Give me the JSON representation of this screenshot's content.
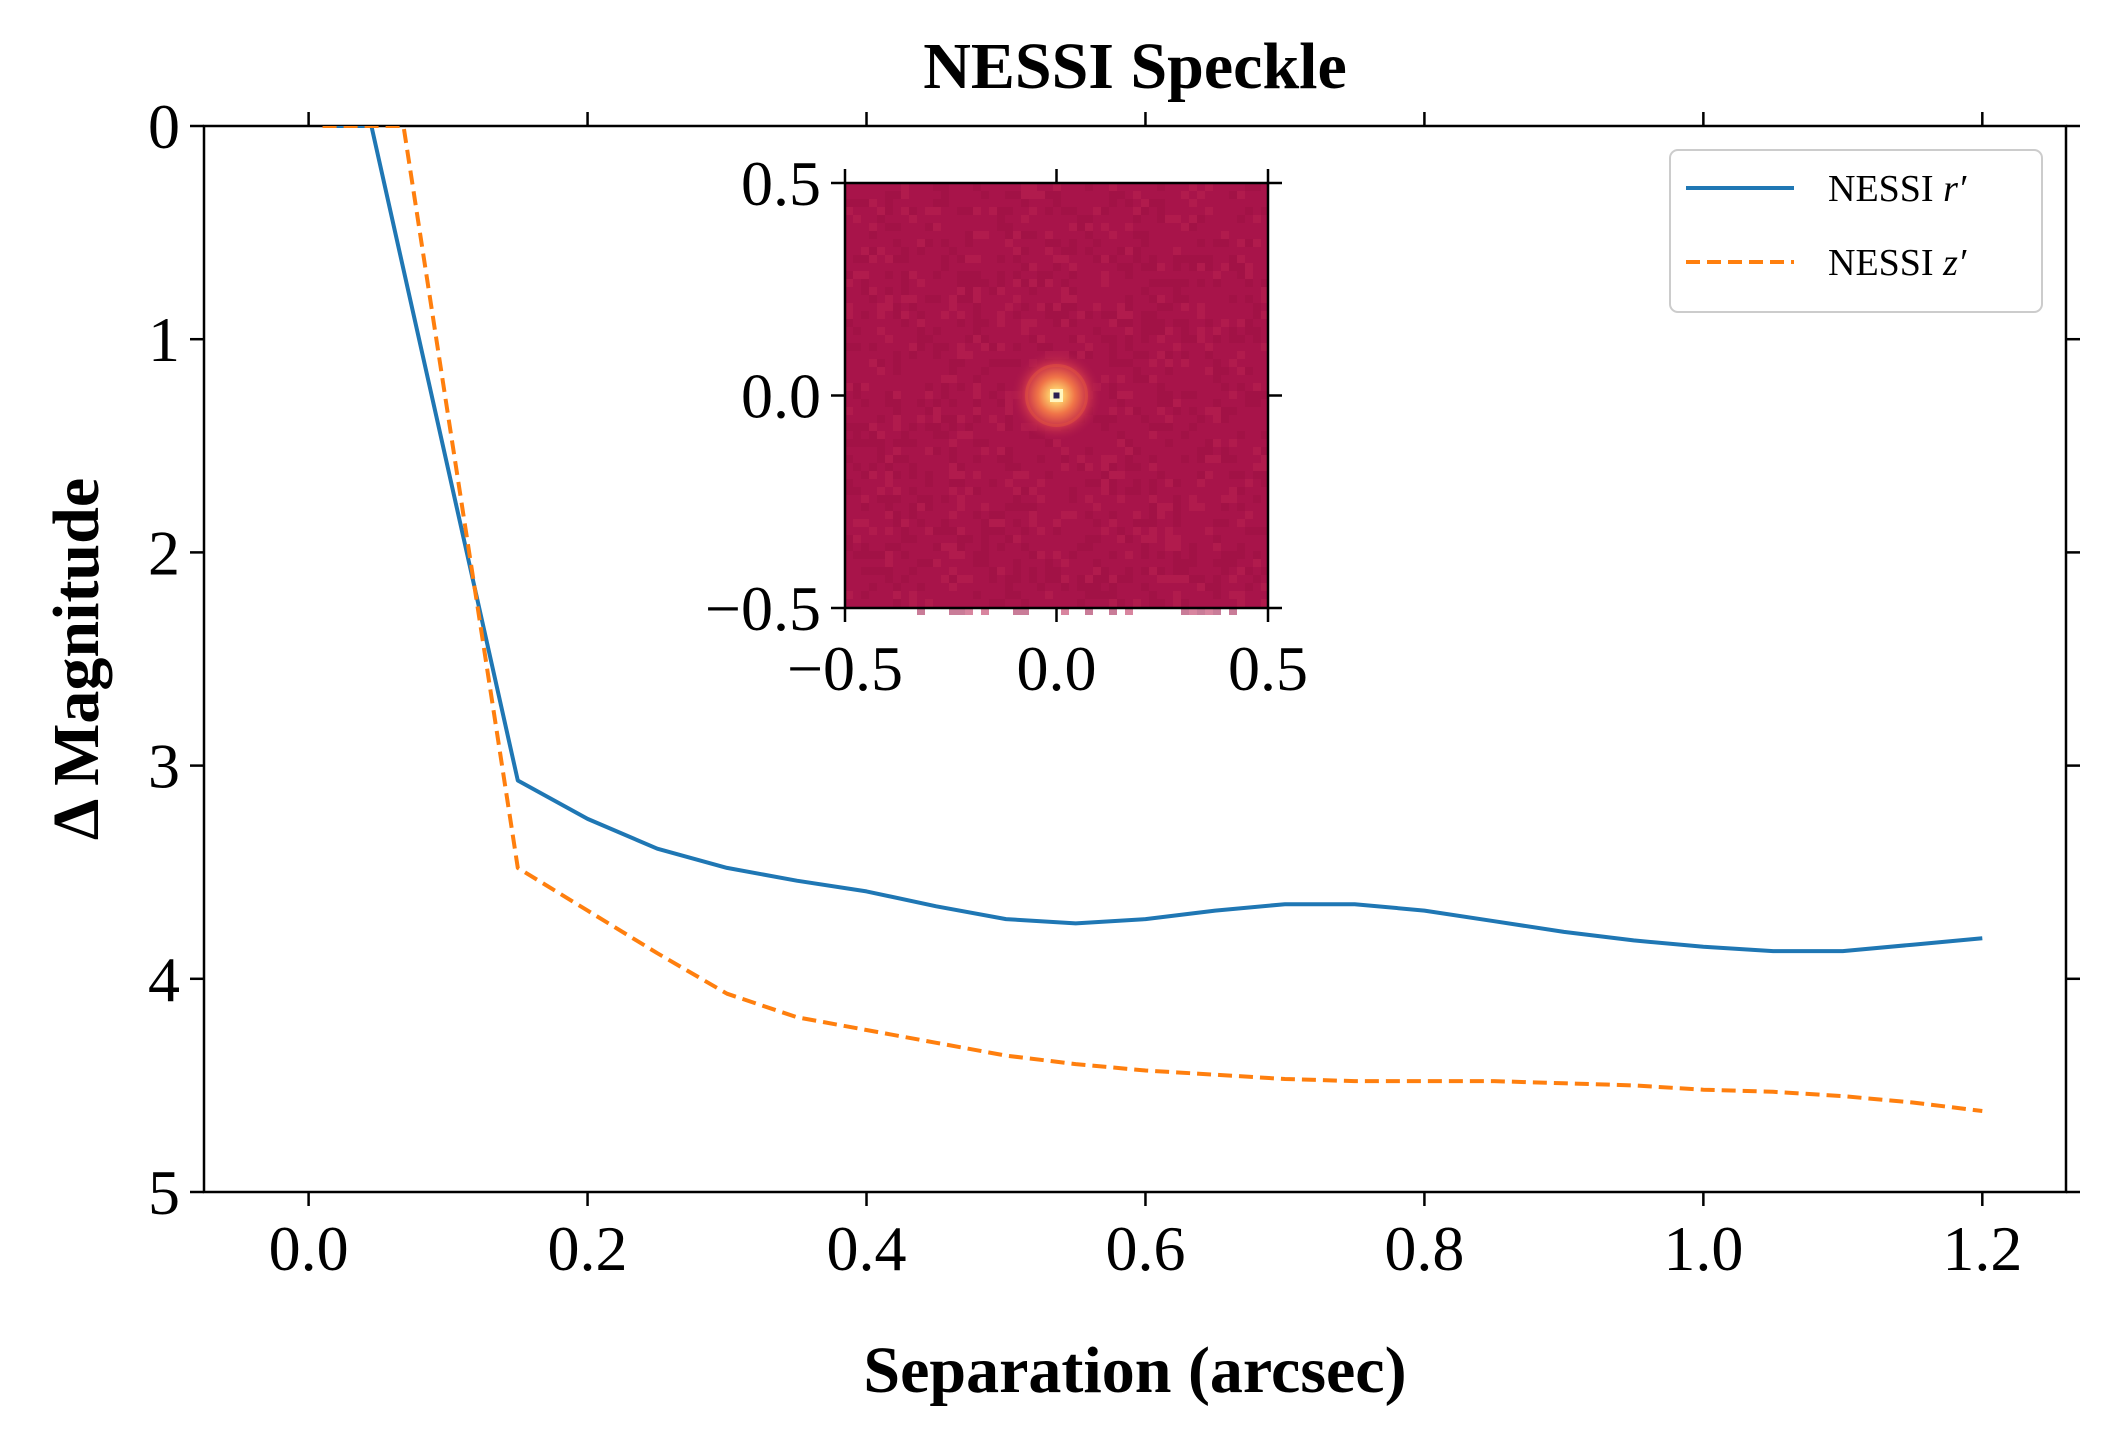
{
  "chart_data": {
    "type": "line",
    "title": "NESSI Speckle",
    "xlabel": "Separation (arcsec)",
    "ylabel": "Δ Magnitude",
    "xlim": [
      -0.075,
      1.26
    ],
    "ylim": [
      5,
      0
    ],
    "y_inverted": true,
    "xticks": [
      0.0,
      0.2,
      0.4,
      0.6,
      0.8,
      1.0,
      1.2
    ],
    "xtick_labels": [
      "0.0",
      "0.2",
      "0.4",
      "0.6",
      "0.8",
      "1.0",
      "1.2"
    ],
    "yticks": [
      0,
      1,
      2,
      3,
      4,
      5
    ],
    "ytick_labels": [
      "0",
      "1",
      "2",
      "3",
      "4",
      "5"
    ],
    "grid": false,
    "legend_position": "top-right",
    "series": [
      {
        "name": "NESSI r′",
        "name_base": "NESSI ",
        "name_var": "r′",
        "color": "#1f77b4",
        "style": "solid",
        "x": [
          0.01,
          0.045,
          0.15,
          0.2,
          0.25,
          0.3,
          0.35,
          0.4,
          0.45,
          0.5,
          0.55,
          0.6,
          0.65,
          0.7,
          0.75,
          0.8,
          0.85,
          0.9,
          0.95,
          1.0,
          1.05,
          1.1,
          1.15,
          1.2
        ],
        "y": [
          0.0,
          0.0,
          3.07,
          3.25,
          3.39,
          3.48,
          3.54,
          3.59,
          3.66,
          3.72,
          3.74,
          3.72,
          3.68,
          3.65,
          3.65,
          3.68,
          3.73,
          3.78,
          3.82,
          3.85,
          3.87,
          3.87,
          3.84,
          3.81
        ]
      },
      {
        "name": "NESSI z′",
        "name_base": "NESSI ",
        "name_var": "z′",
        "color": "#ff7f0e",
        "style": "dashed",
        "x": [
          0.01,
          0.068,
          0.15,
          0.2,
          0.25,
          0.3,
          0.35,
          0.4,
          0.45,
          0.5,
          0.55,
          0.6,
          0.65,
          0.7,
          0.75,
          0.8,
          0.85,
          0.9,
          0.95,
          1.0,
          1.05,
          1.1,
          1.15,
          1.2
        ],
        "y": [
          0.0,
          0.0,
          3.48,
          3.68,
          3.88,
          4.07,
          4.18,
          4.24,
          4.3,
          4.36,
          4.4,
          4.43,
          4.45,
          4.47,
          4.48,
          4.48,
          4.48,
          4.49,
          4.5,
          4.52,
          4.53,
          4.55,
          4.58,
          4.62
        ]
      }
    ],
    "inset": {
      "description_type": "image",
      "xlim": [
        -0.5,
        0.5
      ],
      "ylim": [
        -0.5,
        0.5
      ],
      "xticks": [
        -0.5,
        0.0,
        0.5
      ],
      "xtick_labels": [
        "−0.5",
        "0.0",
        "0.5"
      ],
      "yticks": [
        -0.5,
        0.0,
        0.5
      ],
      "ytick_labels": [
        "−0.5",
        "0.0",
        "0.5"
      ],
      "background_color": "#a8144a",
      "source_position": [
        0.0,
        0.0
      ]
    }
  }
}
